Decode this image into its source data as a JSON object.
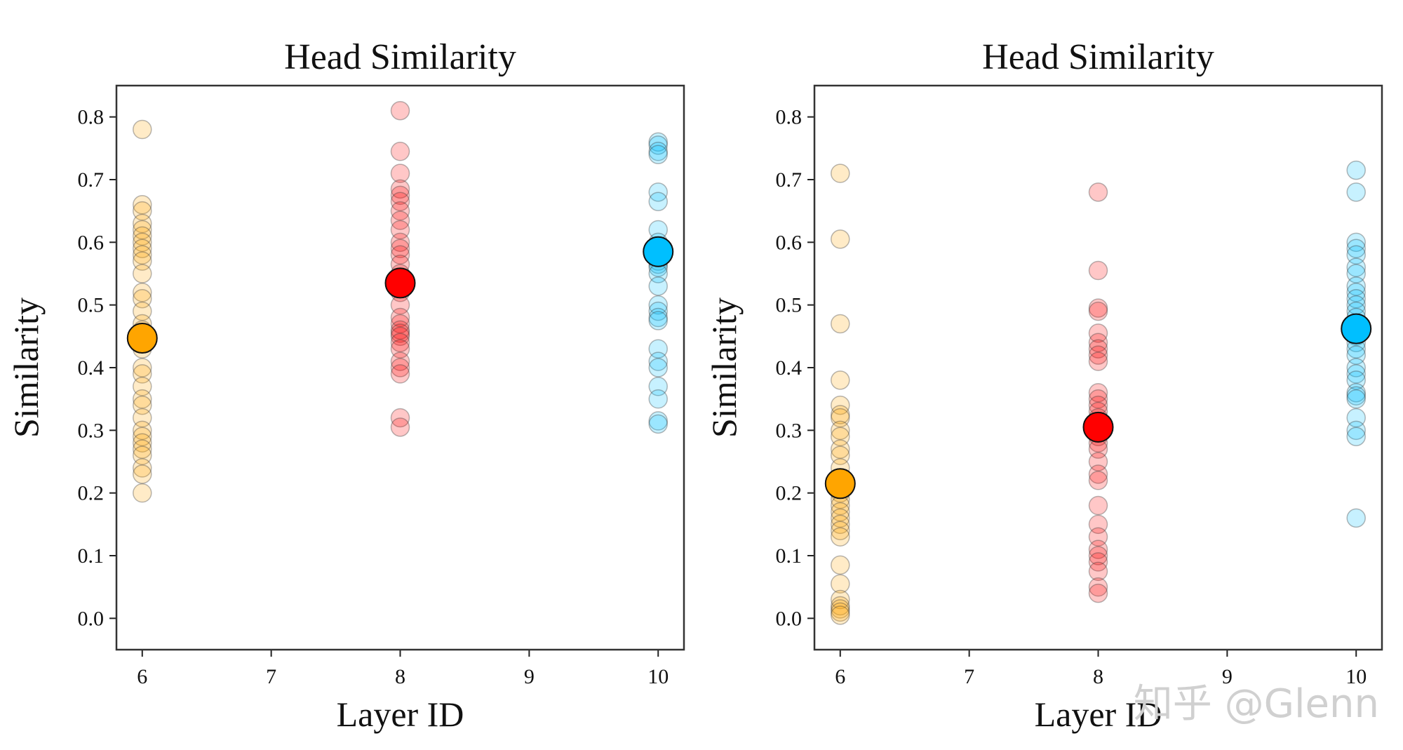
{
  "watermark": "知乎 @Glenn",
  "chart_data": [
    {
      "type": "scatter",
      "title": "Head Similarity",
      "xlabel": "Layer ID",
      "ylabel": "Similarity",
      "xlim": [
        5.8,
        10.2
      ],
      "ylim": [
        -0.05,
        0.85
      ],
      "xticks": [
        6,
        7,
        8,
        9,
        10
      ],
      "yticks": [
        0.0,
        0.1,
        0.2,
        0.3,
        0.4,
        0.5,
        0.6,
        0.7,
        0.8
      ],
      "grid": false,
      "legend": false,
      "series": [
        {
          "color": "#FFA500",
          "x": 6,
          "points": [
            0.78,
            0.66,
            0.65,
            0.63,
            0.62,
            0.61,
            0.6,
            0.59,
            0.58,
            0.57,
            0.55,
            0.52,
            0.51,
            0.49,
            0.47,
            0.46,
            0.43,
            0.4,
            0.39,
            0.37,
            0.35,
            0.34,
            0.32,
            0.3,
            0.29,
            0.28,
            0.27,
            0.26,
            0.24,
            0.23,
            0.2
          ],
          "mean": 0.447
        },
        {
          "color": "#FF0000",
          "x": 8,
          "points": [
            0.81,
            0.745,
            0.71,
            0.685,
            0.675,
            0.665,
            0.65,
            0.635,
            0.62,
            0.6,
            0.59,
            0.58,
            0.565,
            0.55,
            0.52,
            0.5,
            0.48,
            0.47,
            0.46,
            0.455,
            0.45,
            0.44,
            0.43,
            0.41,
            0.4,
            0.39,
            0.32,
            0.305
          ],
          "mean": 0.535
        },
        {
          "color": "#00BFFF",
          "x": 10,
          "points": [
            0.76,
            0.755,
            0.745,
            0.74,
            0.68,
            0.665,
            0.62,
            0.6,
            0.58,
            0.57,
            0.565,
            0.56,
            0.55,
            0.53,
            0.5,
            0.49,
            0.48,
            0.475,
            0.43,
            0.41,
            0.4,
            0.37,
            0.35,
            0.315,
            0.31
          ],
          "mean": 0.585
        }
      ]
    },
    {
      "type": "scatter",
      "title": "Head Similarity",
      "xlabel": "Layer ID",
      "ylabel": "Similarity",
      "xlim": [
        5.8,
        10.2
      ],
      "ylim": [
        -0.05,
        0.85
      ],
      "xticks": [
        6,
        7,
        8,
        9,
        10
      ],
      "yticks": [
        0.0,
        0.1,
        0.2,
        0.3,
        0.4,
        0.5,
        0.6,
        0.7,
        0.8
      ],
      "grid": false,
      "legend": false,
      "series": [
        {
          "color": "#FFA500",
          "x": 6,
          "points": [
            0.71,
            0.605,
            0.47,
            0.38,
            0.34,
            0.325,
            0.32,
            0.3,
            0.29,
            0.27,
            0.26,
            0.24,
            0.22,
            0.2,
            0.19,
            0.18,
            0.17,
            0.16,
            0.15,
            0.14,
            0.13,
            0.085,
            0.055,
            0.03,
            0.02,
            0.015,
            0.01,
            0.005
          ],
          "mean": 0.215
        },
        {
          "color": "#FF0000",
          "x": 8,
          "points": [
            0.68,
            0.555,
            0.495,
            0.49,
            0.455,
            0.44,
            0.43,
            0.42,
            0.41,
            0.36,
            0.35,
            0.34,
            0.33,
            0.32,
            0.31,
            0.29,
            0.28,
            0.27,
            0.25,
            0.23,
            0.22,
            0.18,
            0.15,
            0.13,
            0.11,
            0.1,
            0.09,
            0.075,
            0.05,
            0.04
          ],
          "mean": 0.305
        },
        {
          "color": "#00BFFF",
          "x": 10,
          "points": [
            0.715,
            0.68,
            0.6,
            0.59,
            0.58,
            0.56,
            0.55,
            0.53,
            0.52,
            0.51,
            0.5,
            0.49,
            0.48,
            0.47,
            0.45,
            0.44,
            0.43,
            0.42,
            0.4,
            0.39,
            0.38,
            0.36,
            0.355,
            0.35,
            0.32,
            0.3,
            0.29,
            0.16
          ],
          "mean": 0.462
        }
      ]
    }
  ]
}
